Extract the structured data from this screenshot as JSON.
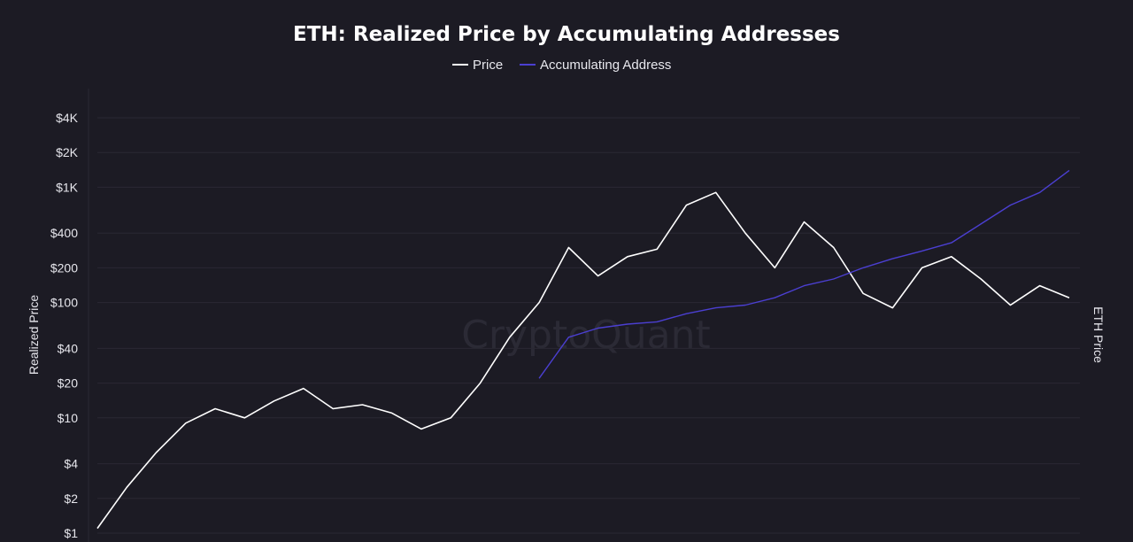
{
  "watermark": "CryptoQuant",
  "chart_data": {
    "type": "line",
    "title": "ETH: Realized Price by Accumulating Addresses",
    "ylabel": "Realized Price",
    "y2label": "ETH Price",
    "xlabel": "",
    "yscale": "log",
    "ylim": [
      1,
      4000
    ],
    "yticks": [
      {
        "value": 1,
        "label": "$1"
      },
      {
        "value": 2,
        "label": "$2"
      },
      {
        "value": 4,
        "label": "$4"
      },
      {
        "value": 10,
        "label": "$10"
      },
      {
        "value": 20,
        "label": "$20"
      },
      {
        "value": 40,
        "label": "$40"
      },
      {
        "value": 100,
        "label": "$100"
      },
      {
        "value": 200,
        "label": "$200"
      },
      {
        "value": 400,
        "label": "$400"
      },
      {
        "value": 1000,
        "label": "$1K"
      },
      {
        "value": 2000,
        "label": "$2K"
      },
      {
        "value": 4000,
        "label": "$4K"
      }
    ],
    "grid": true,
    "legend": "top-center",
    "x": [
      0,
      0.3,
      0.6,
      0.9,
      1.2,
      1.5,
      1.8,
      2.1,
      2.4,
      2.7,
      3.0,
      3.3,
      3.6,
      3.9,
      4.2,
      4.5,
      4.8,
      5.1,
      5.4,
      5.7,
      6.0,
      6.3,
      6.6,
      6.9,
      7.2,
      7.5,
      7.8,
      8.1,
      8.4,
      8.7,
      9.0,
      9.3,
      9.6,
      9.9
    ],
    "series": [
      {
        "name": "Price",
        "color": "#ffffff",
        "values": [
          1.1,
          2.5,
          5,
          9,
          12,
          10,
          14,
          18,
          12,
          13,
          11,
          8,
          10,
          20,
          50,
          100,
          300,
          170,
          250,
          290,
          700,
          900,
          400,
          200,
          500,
          300,
          120,
          90,
          200,
          250,
          160,
          95,
          140,
          110
        ]
      },
      {
        "name": "Accumulating Address",
        "color": "#4b3fd1",
        "values": [
          null,
          null,
          null,
          null,
          null,
          null,
          null,
          null,
          null,
          null,
          null,
          null,
          null,
          null,
          null,
          22,
          50,
          60,
          65,
          68,
          80,
          90,
          95,
          110,
          140,
          160,
          200,
          240,
          280,
          330,
          480,
          700,
          900,
          1400
        ]
      }
    ]
  }
}
